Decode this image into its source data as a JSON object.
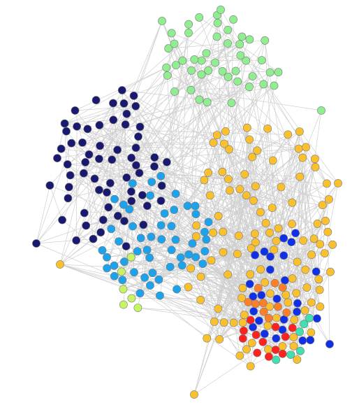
{
  "graph": {
    "type": "network",
    "edge_color": "#cccccc",
    "node_outline": "#7a7a7a",
    "communities": [
      {
        "color": "#90ee90",
        "nodes": 45
      },
      {
        "color": "#191970",
        "nodes": 63
      },
      {
        "color": "#1ca3ec",
        "nodes": 52
      },
      {
        "color": "#fbc02d",
        "nodes": 110
      },
      {
        "color": "#1030e8",
        "nodes": 26
      },
      {
        "color": "#ff7f27",
        "nodes": 10
      },
      {
        "color": "#ff2020",
        "nodes": 12
      },
      {
        "color": "#40e0b0",
        "nodes": 6
      },
      {
        "color": "#c7f464",
        "nodes": 6
      }
    ]
  }
}
